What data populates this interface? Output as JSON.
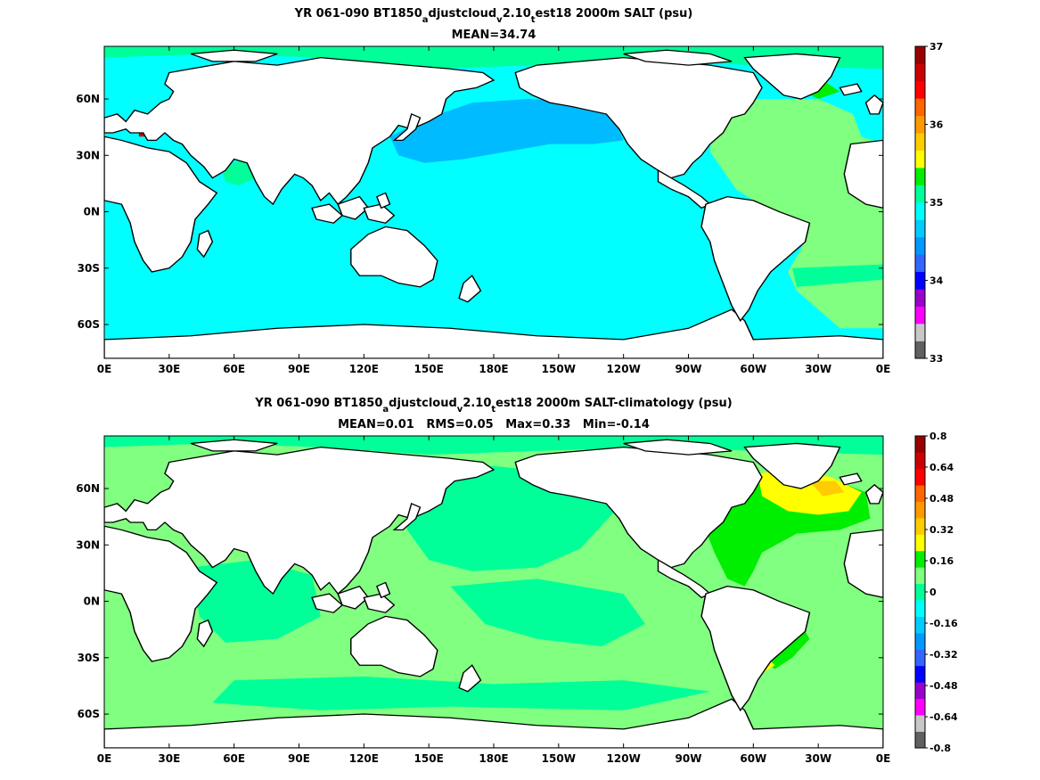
{
  "chart_data": [
    {
      "type": "heatmap",
      "title_parts": {
        "a": "YR 061-090 BT1850",
        "sub1": "a",
        "b": "djustcloud",
        "sub2": "v",
        "c": "2.10",
        "sub3": "t",
        "d": "est18 2000m SALT (psu)"
      },
      "subtitle": "MEAN=34.74",
      "x_ticks": [
        "0E",
        "30E",
        "60E",
        "90E",
        "120E",
        "150E",
        "180E",
        "150W",
        "120W",
        "90W",
        "60W",
        "30W",
        "0E"
      ],
      "y_ticks": [
        "60N",
        "30N",
        "0N",
        "30S",
        "60S"
      ],
      "xlim": [
        0,
        360
      ],
      "ylim": [
        -78,
        88
      ],
      "y_tick_values": [
        60,
        30,
        0,
        -30,
        -60
      ],
      "colorbar": {
        "labels": [
          {
            "text": "37",
            "value": 37
          },
          {
            "text": "36",
            "value": 36
          },
          {
            "text": "35",
            "value": 35
          },
          {
            "text": "34",
            "value": 34
          },
          {
            "text": "33",
            "value": 33
          }
        ],
        "range": [
          33,
          37
        ],
        "colors": [
          "#606060",
          "#c8c8c8",
          "#ff00ff",
          "#9900cc",
          "#0000ff",
          "#3366ff",
          "#0099ff",
          "#00ccff",
          "#00ffff",
          "#00ff99",
          "#00ee00",
          "#ffff00",
          "#ffcc00",
          "#ff9900",
          "#ff6600",
          "#ff0000",
          "#cc0000",
          "#990000"
        ]
      }
    },
    {
      "type": "heatmap",
      "title_parts": {
        "a": "YR 061-090 BT1850",
        "sub1": "a",
        "b": "djustcloud",
        "sub2": "v",
        "c": "2.10",
        "sub3": "t",
        "d": "est18 2000m SALT-climatology (psu)"
      },
      "subtitle": "MEAN=0.01   RMS=0.05   Max=0.33   Min=-0.14",
      "x_ticks": [
        "0E",
        "30E",
        "60E",
        "90E",
        "120E",
        "150E",
        "180E",
        "150W",
        "120W",
        "90W",
        "60W",
        "30W",
        "0E"
      ],
      "y_ticks": [
        "60N",
        "30N",
        "0N",
        "30S",
        "60S"
      ],
      "xlim": [
        0,
        360
      ],
      "ylim": [
        -78,
        88
      ],
      "y_tick_values": [
        60,
        30,
        0,
        -30,
        -60
      ],
      "colorbar": {
        "labels": [
          {
            "text": "0.8",
            "value": 0.8
          },
          {
            "text": "0.64",
            "value": 0.64
          },
          {
            "text": "0.48",
            "value": 0.48
          },
          {
            "text": "0.32",
            "value": 0.32
          },
          {
            "text": "0.16",
            "value": 0.16
          },
          {
            "text": "0",
            "value": 0
          },
          {
            "text": "-0.16",
            "value": -0.16
          },
          {
            "text": "-0.32",
            "value": -0.32
          },
          {
            "text": "-0.48",
            "value": -0.48
          },
          {
            "text": "-0.64",
            "value": -0.64
          },
          {
            "text": "-0.8",
            "value": -0.8
          }
        ],
        "range": [
          -0.8,
          0.8
        ],
        "colors": [
          "#606060",
          "#c8c8c8",
          "#ff00ff",
          "#9900cc",
          "#0000ff",
          "#3366ff",
          "#0099ff",
          "#00ccff",
          "#00ffff",
          "#00ff99",
          "#80ff80",
          "#00ee00",
          "#ffff00",
          "#ffcc00",
          "#ff9900",
          "#ff6600",
          "#ff0000",
          "#cc0000",
          "#990000"
        ]
      }
    }
  ],
  "colors": {
    "land": "#ffffff",
    "coast": "#000000",
    "top_ocean_main": "#00ffff",
    "top_ocean_pacific_north": "#00bbff",
    "top_ocean_atlantic": "#80ff80",
    "top_ocean_arctic": "#00ff99",
    "top_ocean_labrador": "#00ee00",
    "bottom_ocean_main": "#80ff80",
    "bottom_ocean_patch": "#00ff99",
    "bottom_ocean_green": "#00ee00",
    "bottom_ocean_yellow": "#ffff00"
  }
}
